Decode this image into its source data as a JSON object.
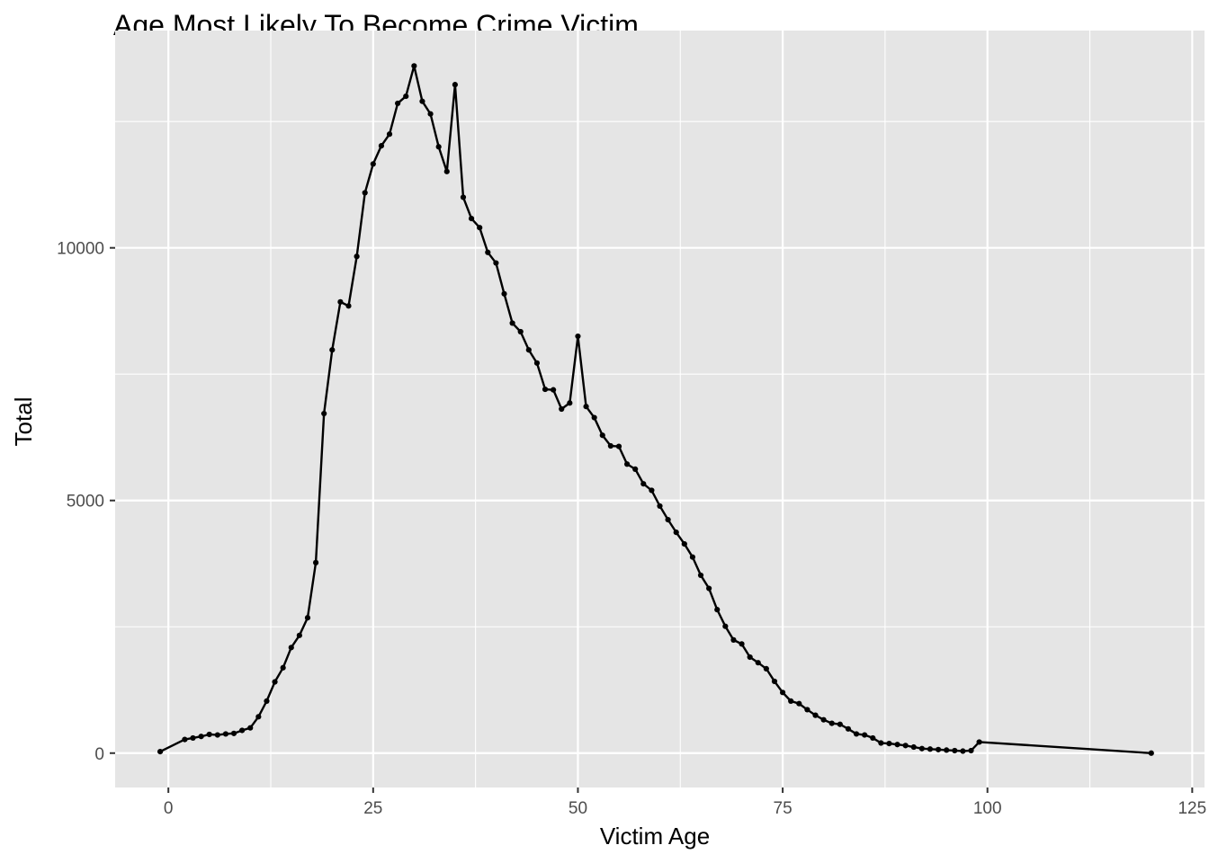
{
  "chart_data": {
    "type": "line",
    "title": "Age Most Likely To Become Crime Victim",
    "xlabel": "Victim Age",
    "ylabel": "Total",
    "xlim": [
      -6.5,
      126.5
    ],
    "ylim": [
      -680,
      14300
    ],
    "x_ticks": [
      0,
      25,
      50,
      75,
      100,
      125
    ],
    "y_ticks": [
      0,
      5000,
      10000
    ],
    "grid": true,
    "markers": true,
    "colors": {
      "panel": "#e5e5e5",
      "grid": "#ffffff",
      "line": "#000000",
      "tick_text": "#4d4d4d"
    },
    "series": [
      {
        "x": [
          -1,
          2,
          3,
          4,
          5,
          6,
          7,
          8,
          9,
          10,
          11,
          12,
          13,
          14,
          15,
          16,
          17,
          18,
          19,
          20,
          21,
          22,
          23,
          24,
          25,
          26,
          27,
          28,
          29,
          30,
          31,
          32,
          33,
          34,
          35,
          36,
          37,
          38,
          39,
          40,
          41,
          42,
          43,
          44,
          45,
          46,
          47,
          48,
          49,
          50,
          51,
          52,
          53,
          54,
          55,
          56,
          57,
          58,
          59,
          60,
          61,
          62,
          63,
          64,
          65,
          66,
          67,
          68,
          69,
          70,
          71,
          72,
          73,
          74,
          75,
          76,
          77,
          78,
          79,
          80,
          81,
          82,
          83,
          84,
          85,
          86,
          87,
          88,
          89,
          90,
          91,
          92,
          93,
          94,
          95,
          96,
          97,
          98,
          99,
          120
        ],
        "y": [
          30,
          270,
          300,
          330,
          370,
          360,
          380,
          390,
          450,
          500,
          720,
          1030,
          1410,
          1690,
          2090,
          2330,
          2680,
          3770,
          6720,
          7980,
          8930,
          8850,
          9830,
          11090,
          11660,
          12020,
          12250,
          12860,
          13000,
          13600,
          12900,
          12650,
          12000,
          11510,
          13230,
          11000,
          10580,
          10400,
          9910,
          9700,
          9090,
          8510,
          8340,
          7980,
          7720,
          7200,
          7190,
          6810,
          6930,
          8250,
          6860,
          6640,
          6290,
          6080,
          6070,
          5720,
          5620,
          5330,
          5200,
          4890,
          4620,
          4370,
          4140,
          3880,
          3520,
          3260,
          2840,
          2510,
          2240,
          2160,
          1900,
          1790,
          1670,
          1420,
          1200,
          1030,
          980,
          860,
          750,
          660,
          590,
          570,
          480,
          380,
          360,
          300,
          200,
          190,
          170,
          150,
          120,
          90,
          80,
          70,
          60,
          50,
          40,
          50,
          220,
          0
        ]
      }
    ]
  }
}
